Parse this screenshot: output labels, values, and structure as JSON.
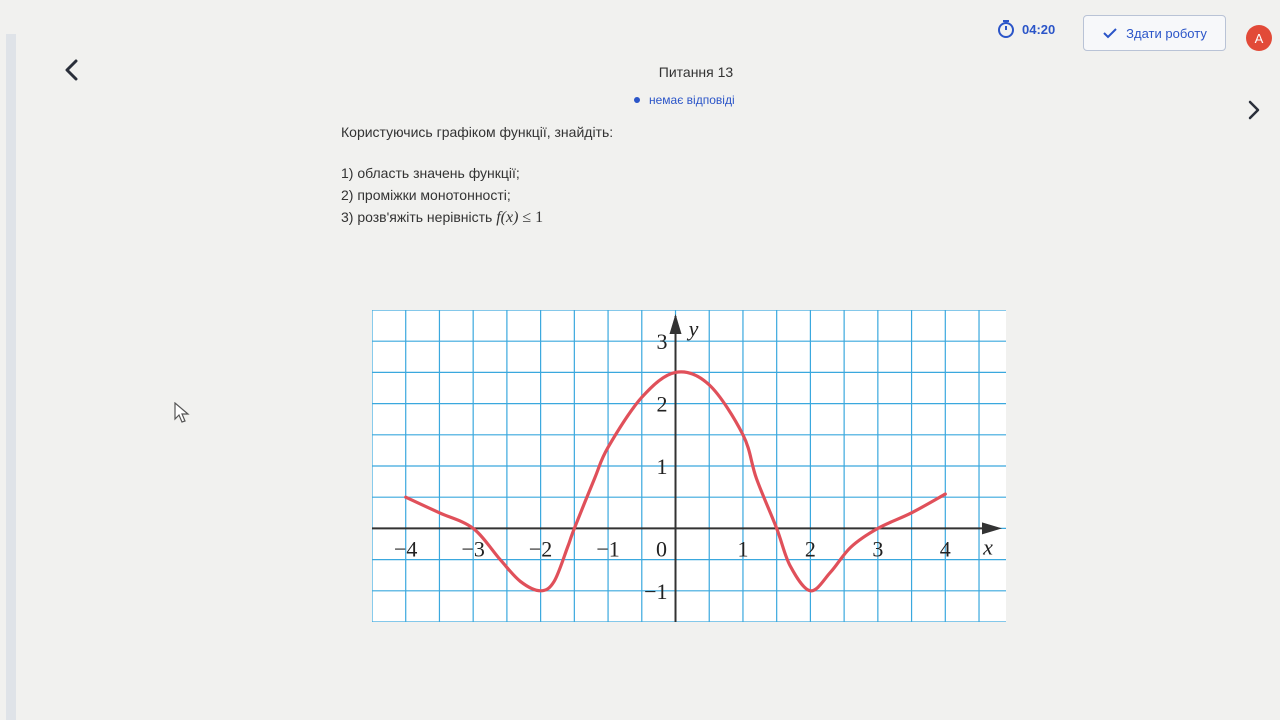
{
  "header": {
    "timer": "04:20",
    "submit_label": "Здати роботу",
    "avatar_letter": "A"
  },
  "question": {
    "title": "Питання 13",
    "status": "немає відповіді",
    "intro": "Користуючись графіком функції, знайдіть:",
    "items": [
      "1) область значень  функції;",
      "2) проміжки монотонності;",
      "3) розв'яжіть нерівність"
    ],
    "inequality_fx": "f(x)",
    "inequality_rel": "≤ 1"
  },
  "colors": {
    "accent": "#2b55c8",
    "grid": "#3aa8de",
    "curve": "#e0505a",
    "avatar": "#e24a38"
  },
  "icons": {
    "back": "chevron-left-icon",
    "next": "chevron-right-icon",
    "timer": "stopwatch-icon",
    "submit": "checkmark-icon",
    "cursor": "mouse-pointer-icon"
  },
  "chart_data": {
    "type": "line",
    "x_tick_labels": [
      "−4",
      "−3",
      "−2",
      "−1",
      "0",
      "1",
      "2",
      "3",
      "4"
    ],
    "y_tick_labels": [
      "3",
      "2",
      "1",
      "−1"
    ],
    "xlabel": "x",
    "ylabel": "y",
    "xlim": [
      -4.5,
      4.9
    ],
    "ylim": [
      -1.5,
      3.5
    ],
    "grid": true,
    "series": [
      {
        "x": [
          -4,
          -3.5,
          -3,
          -2.6,
          -2.3,
          -2,
          -1.8,
          -1.6,
          -1.5,
          -1.2,
          -1,
          -0.5,
          0,
          0.5,
          1,
          1.2,
          1.5,
          1.7,
          2,
          2.3,
          2.6,
          3,
          3.5,
          4
        ],
        "y": [
          0.5,
          0.25,
          0,
          -0.5,
          -0.85,
          -1,
          -0.85,
          -0.3,
          0,
          0.8,
          1.3,
          2.1,
          2.5,
          2.3,
          1.5,
          0.8,
          0,
          -0.6,
          -1,
          -0.7,
          -0.3,
          0,
          0.25,
          0.55
        ]
      }
    ]
  }
}
